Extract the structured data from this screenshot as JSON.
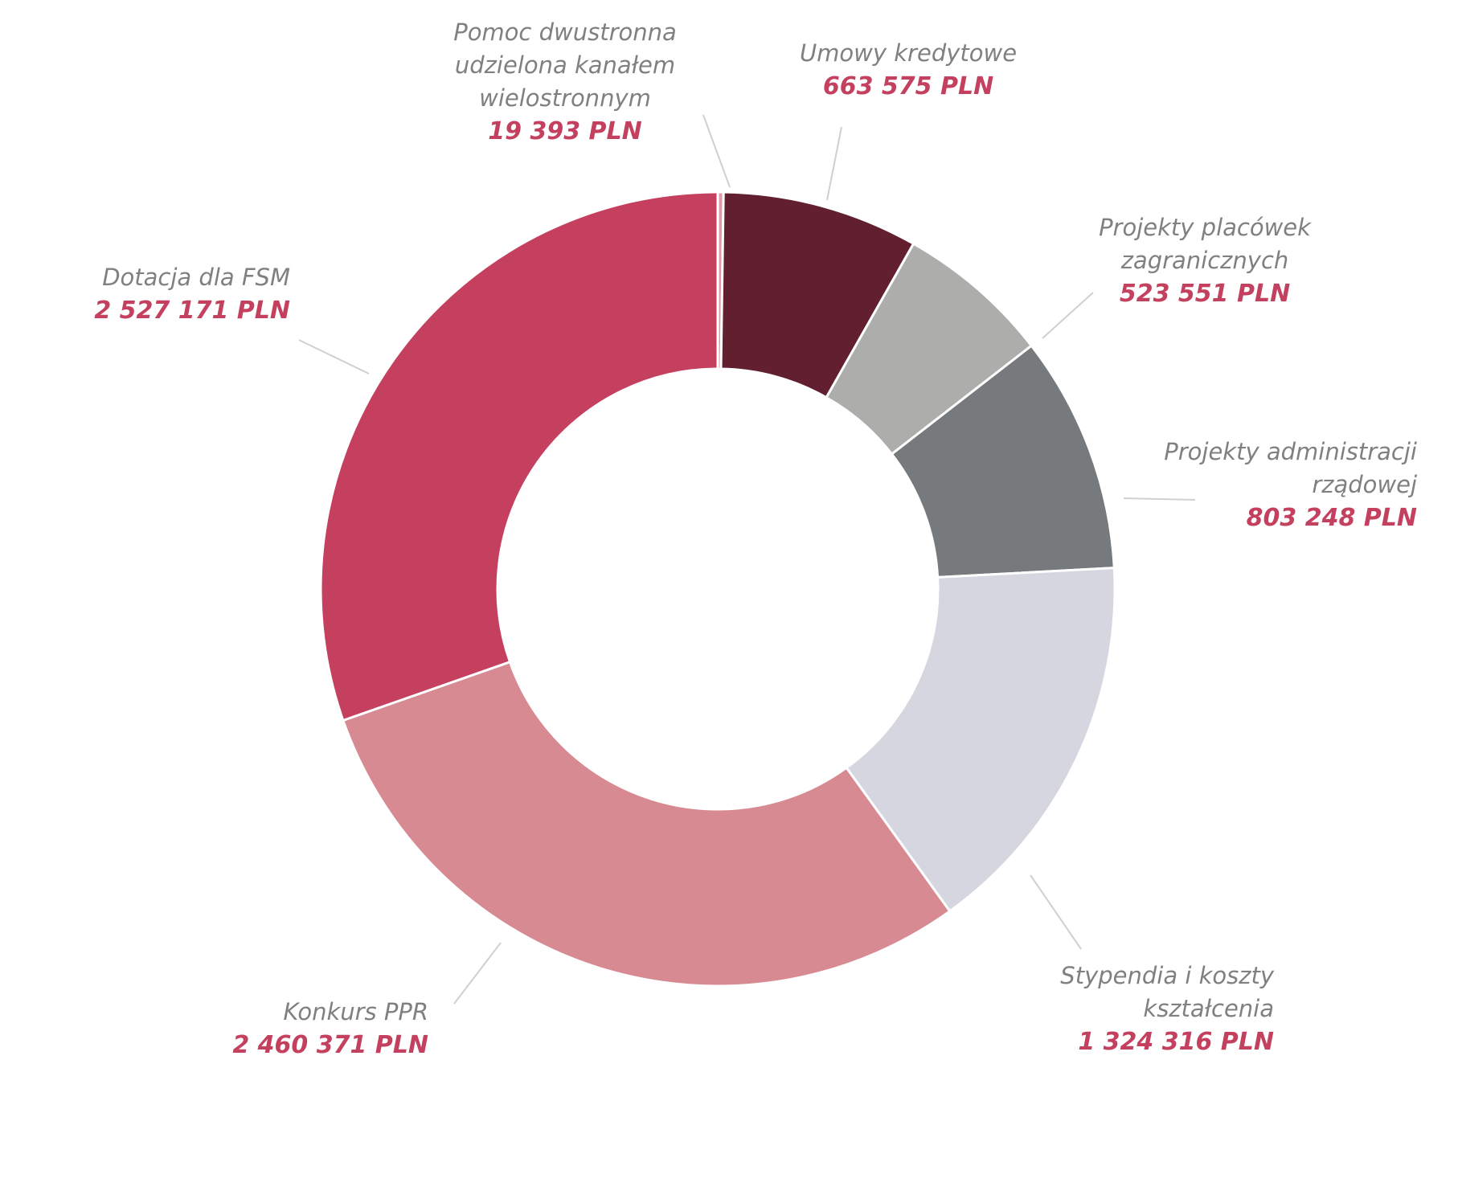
{
  "chart_data": {
    "type": "pie",
    "variant": "donut",
    "title": "",
    "currency": "PLN",
    "slices": [
      {
        "id": "pomoc",
        "label_lines": [
          "Pomoc dwustronna",
          "udzielona kanałem",
          "wielostronnym"
        ],
        "value": 19393,
        "value_label": "19 393 PLN",
        "color": "#e29aa5"
      },
      {
        "id": "umowy",
        "label_lines": [
          "Umowy kredytowe"
        ],
        "value": 663575,
        "value_label": "663 575 PLN",
        "color": "#611f30"
      },
      {
        "id": "placowki",
        "label_lines": [
          "Projekty placówek",
          "zagranicznych"
        ],
        "value": 523551,
        "value_label": "523 551 PLN",
        "color": "#adadab"
      },
      {
        "id": "administracja",
        "label_lines": [
          "Projekty administracji",
          "rządowej"
        ],
        "value": 803248,
        "value_label": "803 248 PLN",
        "color": "#767a7c"
      },
      {
        "id": "stypendia",
        "label_lines": [
          "Stypendia i koszty",
          "kształcenia"
        ],
        "value": 1324316,
        "value_label": "1 324 316 PLN",
        "color": "#d5d6df"
      },
      {
        "id": "konkurs",
        "label_lines": [
          "Konkurs PPR"
        ],
        "value": 2460371,
        "value_label": "2 460 371 PLN",
        "color": "#d78a92"
      },
      {
        "id": "fsm",
        "label_lines": [
          "Dotacja dla FSM"
        ],
        "value": 2527171,
        "value_label": "2 527 171 PLN",
        "color": "#c5405f"
      }
    ]
  }
}
